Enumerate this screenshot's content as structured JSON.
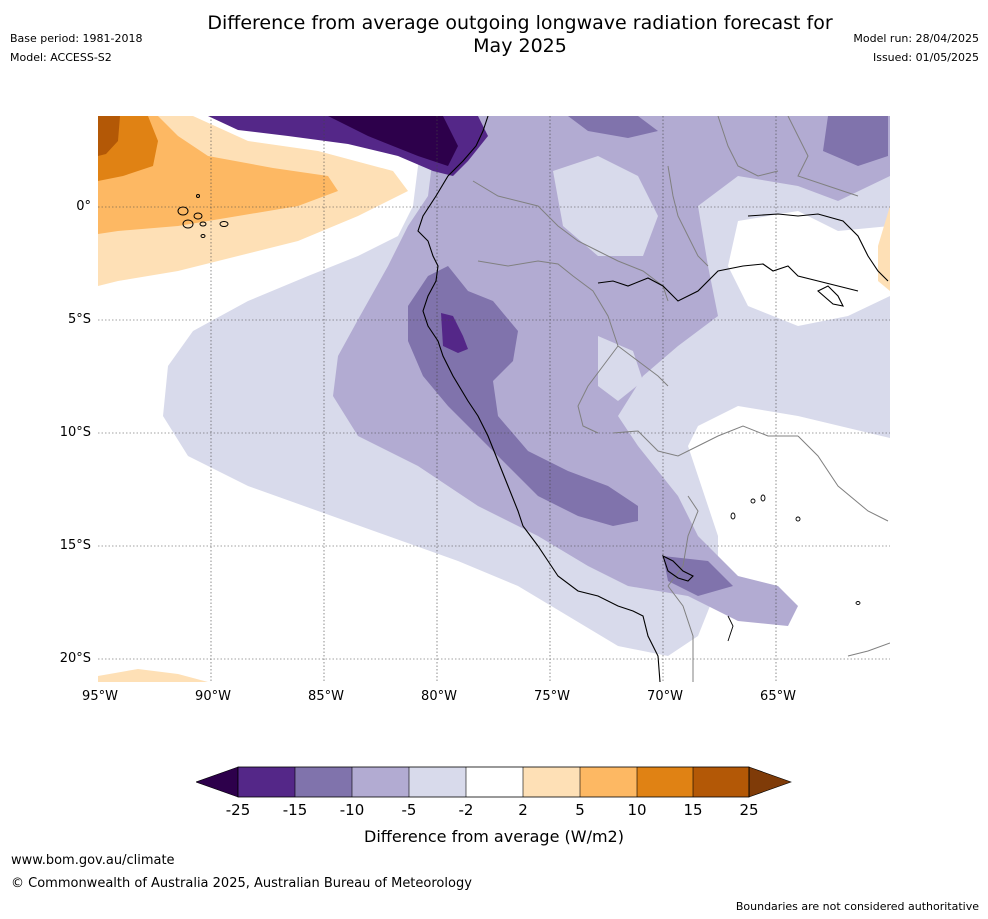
{
  "header": {
    "title_line1": "Difference from average outgoing longwave radiation forecast for",
    "title_line2": "May 2025",
    "base_period": "Base period: 1981-2018",
    "model": "Model: ACCESS-S2",
    "model_run": "Model run: 28/04/2025",
    "issued": "Issued: 01/05/2025"
  },
  "map": {
    "lat_labels": [
      "0°",
      "5°S",
      "10°S",
      "15°S",
      "20°S"
    ],
    "lon_labels": [
      "95°W",
      "90°W",
      "85°W",
      "80°W",
      "75°W",
      "70°W",
      "65°W"
    ],
    "land_outline_color": "#000000",
    "border_color": "#808080"
  },
  "colorbar": {
    "title": "Difference from average (W/m2)",
    "ticks": [
      "-25",
      "-15",
      "-10",
      "-5",
      "-2",
      "2",
      "5",
      "10",
      "15",
      "25"
    ],
    "colors": {
      "below_-25": "#2d004b",
      "-25_-15": "#542788",
      "-15_-10": "#8073ac",
      "-10_-5": "#b2abd2",
      "-5_-2": "#d8daeb",
      "-2_2": "#ffffff",
      "2_5": "#fee0b6",
      "5_10": "#fdb863",
      "10_15": "#e08214",
      "15_25": "#b35806",
      "above_25": "#7f3b08"
    }
  },
  "footer": {
    "url": "www.bom.gov.au/climate",
    "copyright": "© Commonwealth of Australia 2025, Australian Bureau of Meteorology",
    "disclaimer": "Boundaries are not considered authoritative"
  }
}
